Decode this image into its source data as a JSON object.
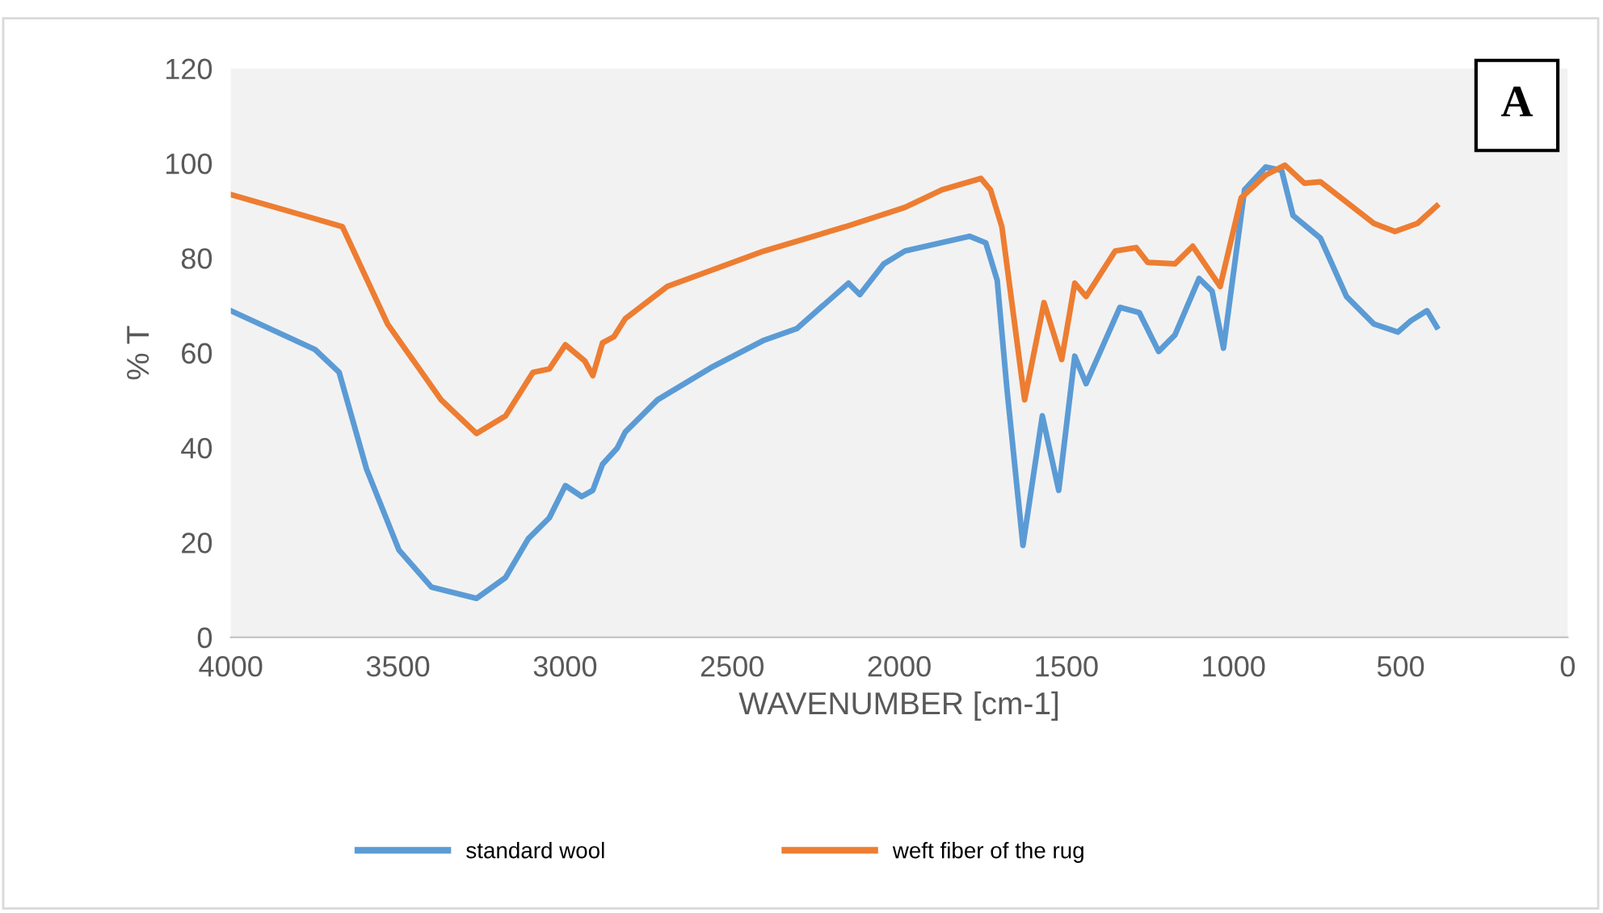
{
  "chart_data": {
    "type": "line",
    "xlabel": "WAVENUMBER [cm-1]",
    "ylabel": "% T",
    "annotations": [
      "A"
    ],
    "xlim": [
      4000,
      0
    ],
    "xticks": [
      4000,
      3500,
      3000,
      2500,
      2000,
      1500,
      1000,
      500,
      0
    ],
    "ylim": [
      0,
      120
    ],
    "yticks": [
      0,
      20,
      40,
      60,
      80,
      100,
      120
    ],
    "grid": false,
    "legend": "bottom",
    "marker": "none",
    "line_style": "solid",
    "series": [
      {
        "name": "standard wool",
        "color": "#5b9bd5",
        "x": [
          4000,
          3748,
          3676,
          3594,
          3497,
          3400,
          3265,
          3178,
          3110,
          3047,
          2999,
          2950,
          2917,
          2888,
          2844,
          2820,
          2723,
          2563,
          2404,
          2307,
          2152,
          2118,
          2046,
          1983,
          1789,
          1741,
          1707,
          1678,
          1630,
          1572,
          1523,
          1475,
          1441,
          1340,
          1282,
          1224,
          1175,
          1103,
          1064,
          1030,
          967,
          904,
          856,
          822,
          740,
          662,
          580,
          508,
          469,
          421,
          392
        ],
        "values": [
          68.9,
          60.7,
          55.9,
          35.5,
          18.4,
          10.6,
          8.2,
          12.6,
          20.8,
          25.2,
          32.0,
          29.7,
          31.0,
          36.5,
          39.9,
          43.3,
          50.1,
          56.9,
          62.7,
          65.1,
          74.7,
          72.3,
          78.8,
          81.5,
          84.6,
          83.2,
          75.3,
          52.5,
          19.4,
          46.7,
          31.0,
          59.3,
          53.5,
          69.6,
          68.5,
          60.3,
          63.8,
          75.7,
          73.0,
          61.0,
          94.4,
          99.2,
          98.5,
          89.0,
          84.2,
          71.9,
          66.1,
          64.4,
          66.8,
          68.9,
          65.5
        ]
      },
      {
        "name": "weft fiber of the rug",
        "color": "#ed7d31",
        "x": [
          4000,
          3748,
          3666,
          3531,
          3371,
          3265,
          3178,
          3096,
          3047,
          2999,
          2941,
          2917,
          2888,
          2854,
          2820,
          2694,
          2404,
          2162,
          1983,
          1872,
          1756,
          1727,
          1693,
          1625,
          1567,
          1514,
          1475,
          1441,
          1354,
          1291,
          1257,
          1175,
          1122,
          1040,
          977,
          904,
          846,
          788,
          740,
          580,
          517,
          450,
          392
        ],
        "values": [
          93.4,
          88.3,
          86.6,
          66.1,
          50.1,
          43.0,
          46.7,
          55.9,
          56.6,
          61.7,
          58.3,
          55.2,
          62.1,
          63.4,
          67.2,
          74.0,
          81.5,
          86.6,
          90.7,
          94.4,
          96.8,
          94.4,
          86.6,
          50.1,
          70.6,
          58.6,
          74.7,
          71.9,
          81.5,
          82.2,
          79.1,
          78.8,
          82.5,
          74.0,
          92.7,
          97.5,
          99.6,
          95.8,
          96.1,
          87.3,
          85.6,
          87.3,
          91.0
        ]
      }
    ]
  }
}
